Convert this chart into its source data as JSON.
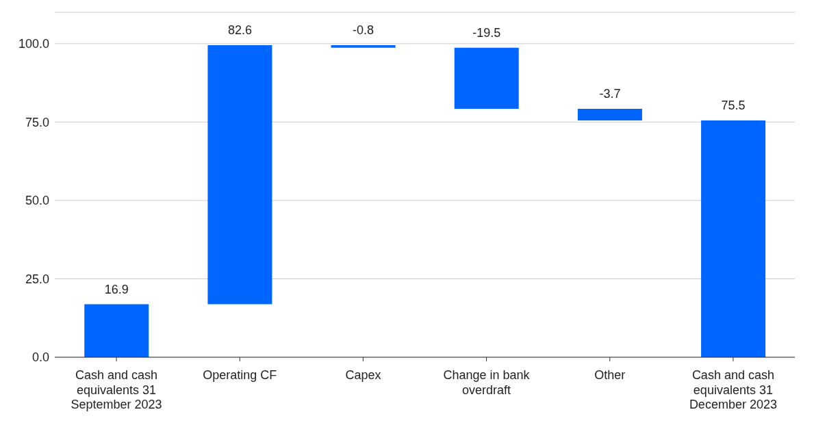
{
  "chart_data": {
    "type": "bar",
    "categories": [
      "Cash and cash equivalents 31 September 2023",
      "Operating CF",
      "Capex",
      "Change in bank overdraft",
      "Other",
      "Cash and cash equivalents 31 December 2023"
    ],
    "values": [
      16.9,
      82.6,
      -0.8,
      -19.5,
      -3.7,
      75.5
    ],
    "base": [
      0,
      16.9,
      99.5,
      98.7,
      79.2,
      0
    ],
    "color": "#0066ff",
    "ylim": [
      0,
      110
    ],
    "yticks": [
      {
        "value": 0,
        "label": "0.0"
      },
      {
        "value": 25,
        "label": "25.0"
      },
      {
        "value": 50,
        "label": "50.0"
      },
      {
        "value": 75,
        "label": "75.0"
      },
      {
        "value": 100,
        "label": "100.0"
      }
    ],
    "grid": "y",
    "data_labels": true
  }
}
